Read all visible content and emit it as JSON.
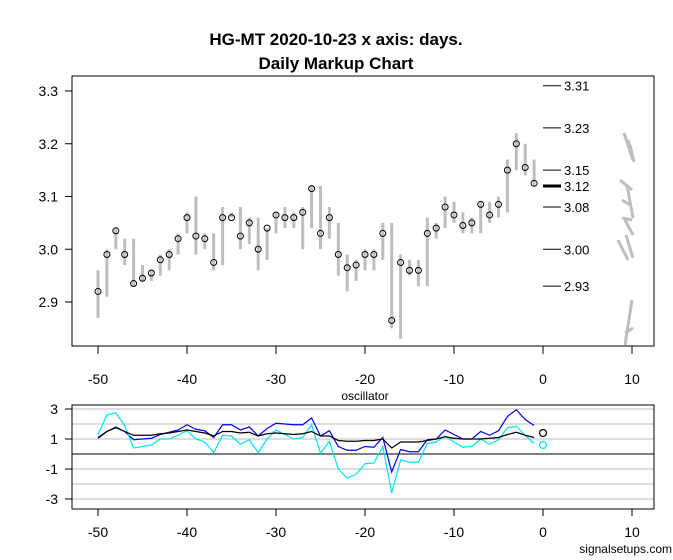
{
  "chart_data": [
    {
      "type": "bar",
      "subtype": "range-bar-with-close-markers",
      "title": "HG-MT 2020-10-23 x axis: days.",
      "subtitle": "Daily Markup Chart",
      "xlabel": "",
      "ylabel": "",
      "xlim": [
        -52,
        12
      ],
      "ylim": [
        2.82,
        3.33
      ],
      "xticks": [
        -50,
        -40,
        -30,
        -20,
        -10,
        0,
        10
      ],
      "yticks": [
        2.9,
        3.0,
        3.1,
        3.2,
        3.3
      ],
      "ytick_labels": [
        "2.9",
        "3.0",
        "3.1",
        "3.2",
        "3.3"
      ],
      "x": [
        -50,
        -49,
        -48,
        -47,
        -46,
        -45,
        -44,
        -43,
        -42,
        -41,
        -40,
        -39,
        -38,
        -37,
        -36,
        -35,
        -34,
        -33,
        -32,
        -31,
        -30,
        -29,
        -28,
        -27,
        -26,
        -25,
        -24,
        -23,
        -22,
        -21,
        -20,
        -19,
        -18,
        -17,
        -16,
        -15,
        -14,
        -13,
        -12,
        -11,
        -10,
        -9,
        -8,
        -7,
        -6,
        -5,
        -4,
        -3,
        -2,
        -1
      ],
      "close": [
        2.92,
        2.99,
        3.035,
        2.99,
        2.935,
        2.945,
        2.955,
        2.98,
        2.99,
        3.02,
        3.06,
        3.025,
        3.02,
        2.975,
        3.06,
        3.06,
        3.025,
        3.05,
        3.0,
        3.04,
        3.065,
        3.06,
        3.06,
        3.07,
        3.115,
        3.03,
        3.06,
        2.99,
        2.965,
        2.97,
        2.99,
        2.99,
        3.03,
        2.865,
        2.975,
        2.96,
        2.96,
        3.03,
        3.04,
        3.08,
        3.065,
        3.045,
        3.05,
        3.085,
        3.065,
        3.085,
        3.15,
        3.2,
        3.155,
        3.125
      ],
      "low": [
        2.87,
        2.91,
        3.0,
        2.97,
        2.93,
        2.94,
        2.94,
        2.95,
        2.96,
        2.99,
        3.03,
        2.99,
        3.0,
        2.96,
        2.97,
        3.06,
        3.0,
        3.01,
        2.96,
        2.98,
        3.03,
        3.04,
        3.04,
        3.0,
        3.04,
        3.0,
        3.02,
        2.95,
        2.92,
        2.94,
        2.96,
        2.96,
        2.98,
        2.85,
        2.83,
        2.95,
        2.93,
        2.93,
        3.02,
        3.04,
        3.05,
        3.03,
        3.03,
        3.03,
        3.05,
        3.06,
        3.07,
        3.15,
        3.14,
        3.12
      ],
      "high": [
        2.96,
        3.0,
        3.04,
        3.02,
        3.02,
        2.97,
        2.96,
        2.99,
        3.0,
        3.03,
        3.07,
        3.1,
        3.03,
        3.03,
        3.08,
        3.07,
        3.08,
        3.06,
        3.06,
        3.04,
        3.07,
        3.08,
        3.07,
        3.08,
        3.12,
        3.12,
        3.08,
        3.05,
        2.99,
        2.98,
        3.0,
        3.0,
        3.05,
        3.05,
        2.99,
        2.98,
        2.98,
        3.06,
        3.05,
        3.1,
        3.09,
        3.07,
        3.06,
        3.09,
        3.09,
        3.1,
        3.17,
        3.22,
        3.2,
        3.17
      ],
      "levels": [
        {
          "value": 3.31,
          "label": "3.31",
          "bold": false
        },
        {
          "value": 3.23,
          "label": "3.23",
          "bold": false
        },
        {
          "value": 3.15,
          "label": "3.15",
          "bold": false
        },
        {
          "value": 3.12,
          "label": "3.12",
          "bold": true
        },
        {
          "value": 3.08,
          "label": "3.08",
          "bold": false
        },
        {
          "value": 3.0,
          "label": "3.00",
          "bold": false
        },
        {
          "value": 2.93,
          "label": "2.93",
          "bold": false
        }
      ]
    },
    {
      "type": "line",
      "title": "oscillator",
      "xlim": [
        -52,
        12
      ],
      "ylim": [
        -3.5,
        3.5
      ],
      "xticks": [
        -50,
        -40,
        -30,
        -20,
        -10,
        0,
        10
      ],
      "yticks": [
        -3,
        -1,
        1,
        3
      ],
      "ytick_labels": [
        "-3",
        "-1",
        "1",
        "3"
      ],
      "gridlines": [
        -3,
        -2,
        -1,
        1,
        2,
        3
      ],
      "zero_line": 0,
      "x": [
        -50,
        -49,
        -48,
        -47,
        -46,
        -45,
        -44,
        -43,
        -42,
        -41,
        -40,
        -39,
        -38,
        -37,
        -36,
        -35,
        -34,
        -33,
        -32,
        -31,
        -30,
        -29,
        -28,
        -27,
        -26,
        -25,
        -24,
        -23,
        -22,
        -21,
        -20,
        -19,
        -18,
        -17,
        -16,
        -15,
        -14,
        -13,
        -12,
        -11,
        -10,
        -9,
        -8,
        -7,
        -6,
        -5,
        -4,
        -3,
        -2,
        -1
      ],
      "series": [
        {
          "name": "blue",
          "color": "#0000ee",
          "values": [
            1.05,
            1.5,
            1.8,
            1.5,
            0.95,
            1.0,
            1.05,
            1.3,
            1.45,
            1.6,
            1.95,
            1.65,
            1.55,
            1.1,
            1.95,
            1.95,
            1.6,
            1.8,
            1.2,
            1.7,
            2.05,
            2.0,
            1.95,
            1.95,
            2.4,
            1.2,
            1.55,
            0.5,
            0.25,
            0.25,
            0.5,
            0.45,
            1.1,
            -1.2,
            0.3,
            0.15,
            0.15,
            0.95,
            1.0,
            1.6,
            1.3,
            1.0,
            1.0,
            1.5,
            1.25,
            1.55,
            2.5,
            2.95,
            2.3,
            1.9
          ]
        },
        {
          "name": "cyan",
          "color": "#00e5ee",
          "values": [
            1.3,
            2.6,
            2.75,
            1.9,
            0.4,
            0.5,
            0.6,
            1.0,
            1.0,
            1.25,
            1.55,
            1.0,
            0.8,
            0.1,
            1.25,
            1.2,
            0.65,
            0.95,
            0.1,
            1.0,
            1.6,
            1.3,
            1.0,
            1.1,
            1.95,
            0.05,
            0.85,
            -1.0,
            -1.6,
            -1.35,
            -0.65,
            -0.6,
            0.5,
            -2.6,
            -0.4,
            -0.55,
            -0.55,
            0.7,
            0.8,
            1.2,
            0.8,
            0.45,
            0.5,
            1.0,
            0.65,
            0.95,
            1.75,
            1.85,
            1.25,
            0.7
          ]
        },
        {
          "name": "black",
          "color": "#000000",
          "values": [
            1.1,
            1.5,
            1.75,
            1.5,
            1.25,
            1.25,
            1.25,
            1.35,
            1.4,
            1.5,
            1.6,
            1.5,
            1.4,
            1.2,
            1.5,
            1.5,
            1.4,
            1.45,
            1.2,
            1.35,
            1.4,
            1.35,
            1.3,
            1.35,
            1.5,
            1.2,
            1.2,
            0.9,
            0.85,
            0.85,
            0.9,
            0.9,
            1.0,
            0.4,
            0.8,
            0.8,
            0.8,
            0.9,
            1.0,
            1.15,
            1.05,
            1.0,
            1.0,
            1.0,
            1.05,
            1.1,
            1.3,
            1.45,
            1.25,
            1.1
          ]
        }
      ],
      "end_markers": [
        {
          "x": 0,
          "y": 1.4,
          "color": "#000000"
        },
        {
          "x": 0,
          "y": 0.6,
          "color": "#00e5ee"
        }
      ]
    }
  ],
  "footer": "signalsetups.com"
}
